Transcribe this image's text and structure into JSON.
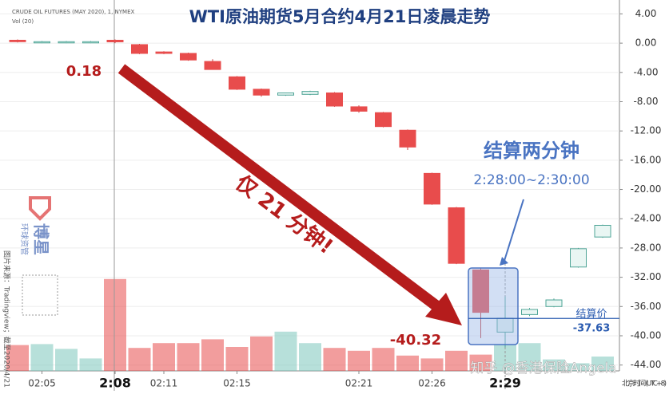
{
  "chart_data": {
    "type": "candlestick",
    "title": "WTI原油期货5月合约4月21日凌晨走势",
    "instrument": "CRUDE OIL FUTURES (MAY 2020), 1, NYMEX",
    "volume_label": "Vol (20)",
    "categories": [
      null,
      "02:05",
      null,
      null,
      "2:08",
      null,
      "02:11",
      null,
      null,
      "02:15",
      null,
      null,
      null,
      null,
      "02:21",
      null,
      null,
      "02:26",
      null,
      null,
      "2:29",
      null,
      null,
      null,
      null
    ],
    "open": [
      0.4,
      0.15,
      0.1,
      0.1,
      0.4,
      -0.2,
      -1.2,
      -1.4,
      -2.5,
      -4.6,
      -6.3,
      -7.1,
      -7.0,
      -6.8,
      -8.7,
      -9.5,
      -11.9,
      -17.8,
      -22.5,
      -31,
      -39.5,
      -37.1,
      -36.0,
      -30.6,
      -26.5
    ],
    "high": [
      0.5,
      0.3,
      0.3,
      0.3,
      0.5,
      -0.1,
      -1.1,
      -1.3,
      -2.2,
      -4.5,
      -6.2,
      -6.8,
      -6.5,
      -6.7,
      -8.5,
      -9.4,
      -11.8,
      -17.7,
      -22.4,
      -30.8,
      -34.6,
      -36.2,
      -34.9,
      -28.0,
      -24.8
    ],
    "low": [
      0.1,
      0.0,
      0.0,
      0.0,
      0.0,
      -1.5,
      -1.5,
      -2.4,
      -3.6,
      -6.4,
      -7.3,
      -7.2,
      -7.1,
      -8.7,
      -9.5,
      -11.5,
      -14.6,
      -22.1,
      -30.2,
      -40.32,
      -41.6,
      -37.3,
      -36.1,
      -30.7,
      -26.6
    ],
    "close": [
      0.2,
      0.2,
      0.2,
      0.2,
      0.18,
      -1.4,
      -1.4,
      -2.3,
      -3.6,
      -6.3,
      -7.1,
      -6.8,
      -6.6,
      -8.6,
      -9.3,
      -11.4,
      -14.2,
      -22,
      -30.1,
      -36.8,
      -37.6,
      -36.4,
      -35.1,
      -28.1,
      -24.9
    ],
    "volume": [
      27,
      28,
      23,
      13,
      96,
      24,
      29,
      29,
      33,
      25,
      36,
      41,
      29,
      24,
      21,
      24,
      16,
      13,
      21,
      17,
      27,
      29,
      12,
      8,
      15
    ],
    "vlim": [
      0,
      100
    ],
    "up_color": "#7cc7bb",
    "down_color": "#e84c4c",
    "ylim": [
      5.9,
      -44.8
    ],
    "yticks": [
      {
        "value": 4,
        "label": "4.00"
      },
      {
        "value": 0,
        "label": "0.00"
      },
      {
        "value": -4,
        "label": "-4.00"
      },
      {
        "value": -8,
        "label": "-8.00"
      },
      {
        "value": -12,
        "label": "-12.00"
      },
      {
        "value": -16,
        "label": "-16.00"
      },
      {
        "value": -20,
        "label": "-20.00"
      },
      {
        "value": -24,
        "label": "-24.00"
      },
      {
        "value": -28,
        "label": "-28.00"
      },
      {
        "value": -32,
        "label": "-32.00"
      },
      {
        "value": -36,
        "label": "-36.00"
      },
      {
        "value": -40,
        "label": "-40.00"
      },
      {
        "value": -44,
        "label": "-44.00"
      }
    ],
    "settlement_price": -37.63,
    "settlement_value_label": "-37.63",
    "settlement_title": "结算价",
    "annotations": {
      "start": "0.18",
      "duration": "仅 21 分钟!",
      "window_title": "结算两分钟",
      "window": "2:28:00~2:30:00",
      "low": "-40.32"
    },
    "timezone": "北京时间 (UTC+8)",
    "source": "图片来源：Tradingview；截至2020/4/21",
    "logo": "博星",
    "logo_sub": "环球资管",
    "watermark": "知乎 @香港保险Angela"
  }
}
